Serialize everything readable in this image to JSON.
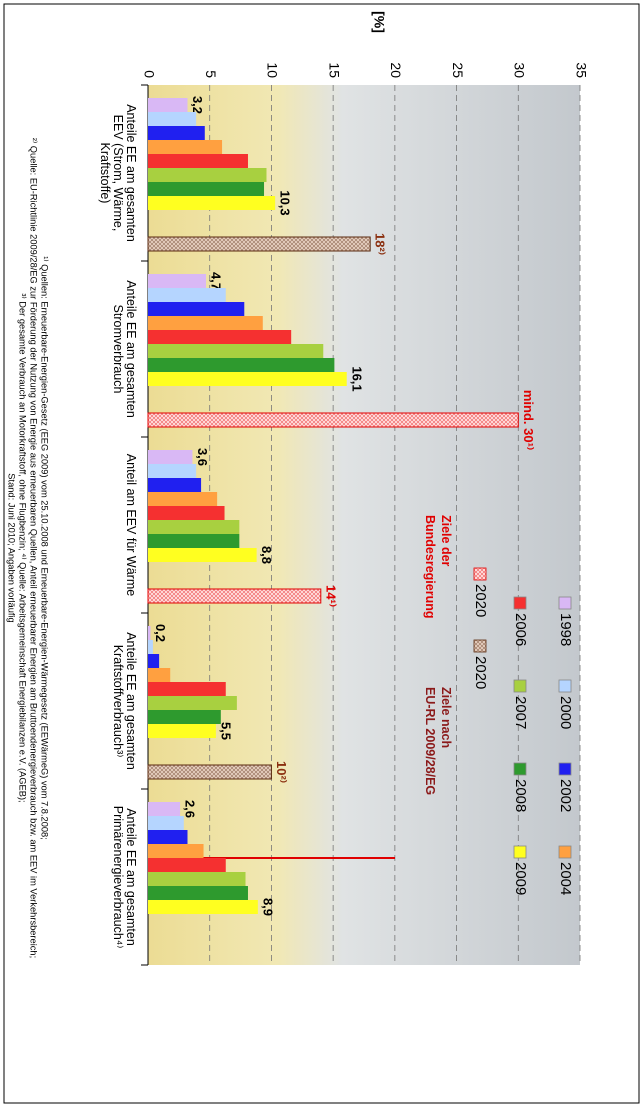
{
  "chart_data": {
    "type": "bar",
    "y_label": "[%]",
    "categories": [
      "Anteile EE am gesamten\nEEV (Strom, Wärme,\nKraftstoffe)",
      "Anteile EE am gesamten\nStromverbrauch",
      "Anteil am EEV für Wärme",
      "Anteile EE am gesamten\nKraftstoffverbrauch³⁾",
      "Anteile EE am gesamten\nPrimärenergieverbrauch⁴⁾"
    ],
    "series": [
      {
        "name": "1998",
        "color": "#d9b8f5",
        "values": [
          3.2,
          4.7,
          3.6,
          0.2,
          2.6
        ],
        "value_labels": [
          "3,2",
          "4,7",
          "3,6",
          "0,2",
          "2,6"
        ]
      },
      {
        "name": "2000",
        "color": "#b5d5ff",
        "values": [
          3.9,
          6.3,
          3.9,
          0.4,
          2.9
        ]
      },
      {
        "name": "2002",
        "color": "#2020f0",
        "values": [
          4.6,
          7.8,
          4.3,
          0.9,
          3.2
        ]
      },
      {
        "name": "2004",
        "color": "#ffa040",
        "values": [
          6.0,
          9.3,
          5.6,
          1.8,
          4.5
        ]
      },
      {
        "name": "2006",
        "color": "#f53030",
        "values": [
          8.1,
          11.6,
          6.2,
          6.3,
          6.3
        ]
      },
      {
        "name": "2007",
        "color": "#a8d040",
        "values": [
          9.6,
          14.2,
          7.4,
          7.2,
          7.9
        ]
      },
      {
        "name": "2008",
        "color": "#2e9a2e",
        "values": [
          9.4,
          15.1,
          7.4,
          5.9,
          8.1
        ]
      },
      {
        "name": "2009",
        "color": "#ffff20",
        "values": [
          10.3,
          16.1,
          8.8,
          5.5,
          8.9
        ],
        "value_labels": [
          "10,3",
          "16,1",
          "8,8",
          "5,5",
          "8,9"
        ]
      },
      {
        "name": "2020",
        "color": "#ffd6d6",
        "edgecolor": "#e00000",
        "label_color": "#e00000",
        "values": [
          null,
          30,
          14,
          null,
          null
        ],
        "value_labels": [
          null,
          "mind. 30¹⁾",
          "14¹⁾",
          null,
          null
        ]
      },
      {
        "name": "2020",
        "color": "#e0c8b8",
        "edgecolor": "#5a2a10",
        "label_color": "#8b3010",
        "values": [
          18,
          null,
          null,
          10,
          null
        ],
        "value_labels": [
          "18²⁾",
          null,
          null,
          "10²⁾",
          null
        ]
      }
    ],
    "legend_groups": [
      {
        "title": "Ziele der\nBundesregierung",
        "color": "#e00000"
      },
      {
        "title": "Ziele nach\nEU-RL 2009/28/EG",
        "color": "#8b1a1a"
      }
    ],
    "ylim": [
      0,
      35
    ],
    "yticks": [
      0,
      5,
      10,
      15,
      20,
      25,
      30,
      35
    ],
    "grid": true,
    "footnotes": [
      "¹⁾ Quellen: Erneuerbare-Energien-Gesetz (EEG 2009) vom 25.10.2008 und Erneuerbare-Energien-Wärmegesetz (EEWärmeG) vom 7.8.2008;",
      "²⁾ Quelle: EU-Richtlinie 2009/28/EG zur Förderung der Nutzung von Energie aus erneuerbaren Quellen, Anteil erneuerbarer Energien am Bruttoendenergieverbrauch bzw. am EEV im Verkehrsbereich;",
      "³⁾ Der gesamte Verbrauch an Motorkraftstoff, ohne Flugbenzin; ⁴⁾ Quelle: Arbeitsgemeinschaft Energiebilanzen e.V. (AGEB);",
      "Stand: Juni 2010; Angaben vorläufig"
    ]
  }
}
